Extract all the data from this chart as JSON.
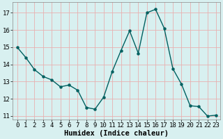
{
  "x": [
    0,
    1,
    2,
    3,
    4,
    5,
    6,
    7,
    8,
    9,
    10,
    11,
    12,
    13,
    14,
    15,
    16,
    17,
    18,
    19,
    20,
    21,
    22,
    23
  ],
  "y": [
    15.0,
    14.4,
    13.7,
    13.3,
    13.1,
    12.7,
    12.8,
    12.5,
    11.5,
    11.4,
    12.1,
    13.6,
    14.8,
    15.95,
    14.65,
    17.0,
    17.2,
    16.1,
    13.75,
    12.85,
    11.6,
    11.55,
    11.0,
    11.05
  ],
  "xlabel": "Humidex (Indice chaleur)",
  "ylim": [
    10.8,
    17.6
  ],
  "xlim": [
    -0.5,
    23.5
  ],
  "yticks": [
    11,
    12,
    13,
    14,
    15,
    16,
    17
  ],
  "xticks": [
    0,
    1,
    2,
    3,
    4,
    5,
    6,
    7,
    8,
    9,
    10,
    11,
    12,
    13,
    14,
    15,
    16,
    17,
    18,
    19,
    20,
    21,
    22,
    23
  ],
  "line_color": "#006060",
  "marker": "o",
  "marker_size": 2.2,
  "bg_color": "#d8f0f0",
  "grid_color": "#e8b0b0",
  "xlabel_fontsize": 7.5,
  "tick_fontsize": 6.5,
  "line_width": 1.0,
  "spine_color": "#888888"
}
